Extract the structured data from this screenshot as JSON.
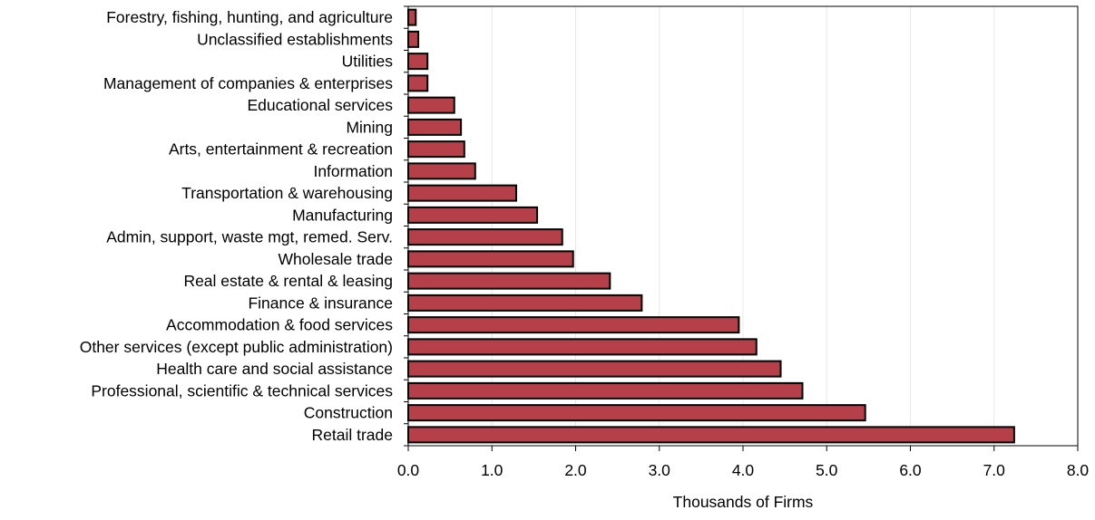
{
  "chart_data": {
    "type": "bar",
    "orientation": "horizontal",
    "categories": [
      "Forestry, fishing, hunting, and agriculture",
      "Unclassified establishments",
      "Utilities",
      "Management of companies & enterprises",
      "Educational services",
      "Mining",
      "Arts, entertainment & recreation",
      "Information",
      "Transportation & warehousing",
      "Manufacturing",
      "Admin, support, waste mgt, remed. Serv.",
      "Wholesale trade",
      "Real estate & rental & leasing",
      "Finance & insurance",
      "Accommodation & food services",
      "Other services (except public administration)",
      "Health care and social assistance",
      "Professional, scientific & technical services",
      "Construction",
      "Retail trade"
    ],
    "values": [
      0.09,
      0.12,
      0.23,
      0.23,
      0.55,
      0.63,
      0.67,
      0.8,
      1.29,
      1.54,
      1.84,
      1.97,
      2.41,
      2.79,
      3.95,
      4.16,
      4.45,
      4.71,
      5.46,
      7.24
    ],
    "xlabel": "Thousands of Firms",
    "ylabel": "",
    "xlim": [
      0,
      8
    ],
    "xticks": [
      "0.0",
      "1.0",
      "2.0",
      "3.0",
      "4.0",
      "5.0",
      "6.0",
      "7.0",
      "8.0"
    ],
    "grid": "vertical",
    "colors": {
      "bar_fill": "#b5404a",
      "bar_stroke": "#000000",
      "grid": "#e8e8e8",
      "axis": "#000000"
    }
  }
}
